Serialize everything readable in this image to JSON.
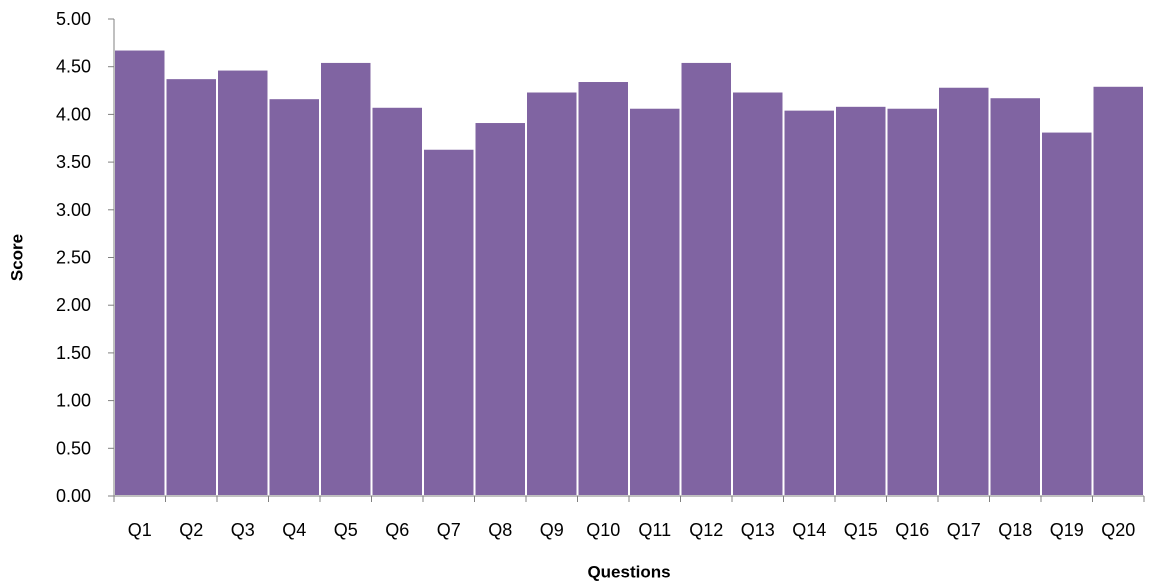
{
  "chart_data": {
    "type": "bar",
    "xlabel": "Questions",
    "ylabel": "Score",
    "ylim": [
      0,
      5
    ],
    "y_ticks": [
      "0.00",
      "0.50",
      "1.00",
      "1.50",
      "2.00",
      "2.50",
      "3.00",
      "3.50",
      "4.00",
      "4.50",
      "5.00"
    ],
    "categories": [
      "Q1",
      "Q2",
      "Q3",
      "Q4",
      "Q5",
      "Q6",
      "Q7",
      "Q8",
      "Q9",
      "Q10",
      "Q11",
      "Q12",
      "Q13",
      "Q14",
      "Q15",
      "Q16",
      "Q17",
      "Q18",
      "Q19",
      "Q20"
    ],
    "values": [
      4.68,
      4.38,
      4.47,
      4.17,
      4.55,
      4.08,
      3.64,
      3.92,
      4.24,
      4.35,
      4.07,
      4.55,
      4.24,
      4.05,
      4.09,
      4.07,
      4.29,
      4.18,
      3.82,
      4.3
    ],
    "grid": false,
    "legend": "none",
    "bar_color": "#8064A2",
    "bar_edge_color": "#ffffff"
  }
}
